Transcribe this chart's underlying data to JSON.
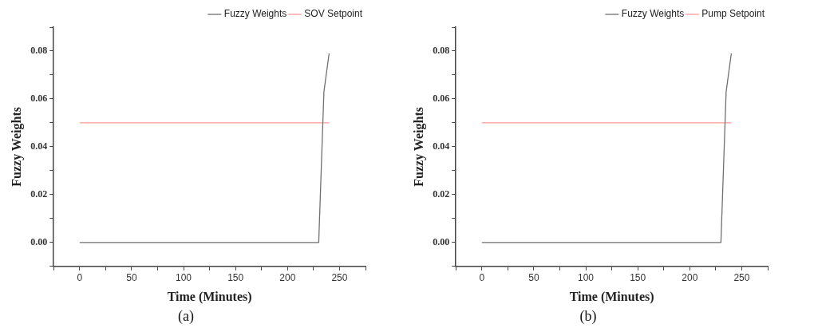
{
  "chart_data": [
    {
      "type": "line",
      "title": "(a)",
      "xlabel": "Time (Minutes)",
      "ylabel": "Fuzzy Weights",
      "legend": "top right",
      "grid": false,
      "marker": "none",
      "line_style": "solid",
      "xlim": [
        -25,
        275
      ],
      "ylim": [
        -0.01,
        0.09
      ],
      "xticks": [
        {
          "value": -25,
          "label": null
        },
        0,
        {
          "value": 25,
          "label": null
        },
        50,
        {
          "value": 75,
          "label": null
        },
        100,
        {
          "value": 125,
          "label": null
        },
        150,
        {
          "value": 175,
          "label": null
        },
        200,
        {
          "value": 225,
          "label": null
        },
        250,
        {
          "value": 275,
          "label": null
        }
      ],
      "yticks": [
        {
          "value": -0.01,
          "label": null
        },
        {
          "value": 0,
          "label": "0.00"
        },
        {
          "value": 0.01,
          "label": null
        },
        0.02,
        {
          "value": 0.03,
          "label": null
        },
        0.04,
        {
          "value": 0.05,
          "label": null
        },
        0.06,
        {
          "value": 0.07,
          "label": null
        },
        0.08,
        {
          "value": 0.09,
          "label": null
        }
      ],
      "series": [
        {
          "name": "Fuzzy Weights",
          "color": "#707070",
          "x": [
            0,
            230,
            235,
            240
          ],
          "values": [
            0,
            0,
            0.063,
            0.079
          ]
        },
        {
          "name": "SOV Setpoint",
          "color": "#ff9999",
          "x": [
            0,
            240
          ],
          "values": [
            0.05,
            0.05
          ]
        }
      ]
    },
    {
      "type": "line",
      "title": "(b)",
      "xlabel": "Time (Minutes)",
      "ylabel": "Fuzzy Weights",
      "legend": "top right",
      "grid": false,
      "marker": "none",
      "line_style": "solid",
      "xlim": [
        -25,
        275
      ],
      "ylim": [
        -0.01,
        0.09
      ],
      "xticks": [
        {
          "value": -25,
          "label": null
        },
        0,
        {
          "value": 25,
          "label": null
        },
        50,
        {
          "value": 75,
          "label": null
        },
        100,
        {
          "value": 125,
          "label": null
        },
        150,
        {
          "value": 175,
          "label": null
        },
        200,
        {
          "value": 225,
          "label": null
        },
        250,
        {
          "value": 275,
          "label": null
        }
      ],
      "yticks": [
        {
          "value": -0.01,
          "label": null
        },
        {
          "value": 0,
          "label": "0.00"
        },
        {
          "value": 0.01,
          "label": null
        },
        0.02,
        {
          "value": 0.03,
          "label": null
        },
        0.04,
        {
          "value": 0.05,
          "label": null
        },
        0.06,
        {
          "value": 0.07,
          "label": null
        },
        0.08,
        {
          "value": 0.09,
          "label": null
        }
      ],
      "series": [
        {
          "name": "Fuzzy Weights",
          "color": "#707070",
          "x": [
            0,
            230,
            235,
            240
          ],
          "values": [
            0,
            0,
            0.063,
            0.079
          ]
        },
        {
          "name": "Pump Setpoint",
          "color": "#ff9999",
          "x": [
            0,
            240
          ],
          "values": [
            0.05,
            0.05
          ]
        }
      ]
    }
  ]
}
